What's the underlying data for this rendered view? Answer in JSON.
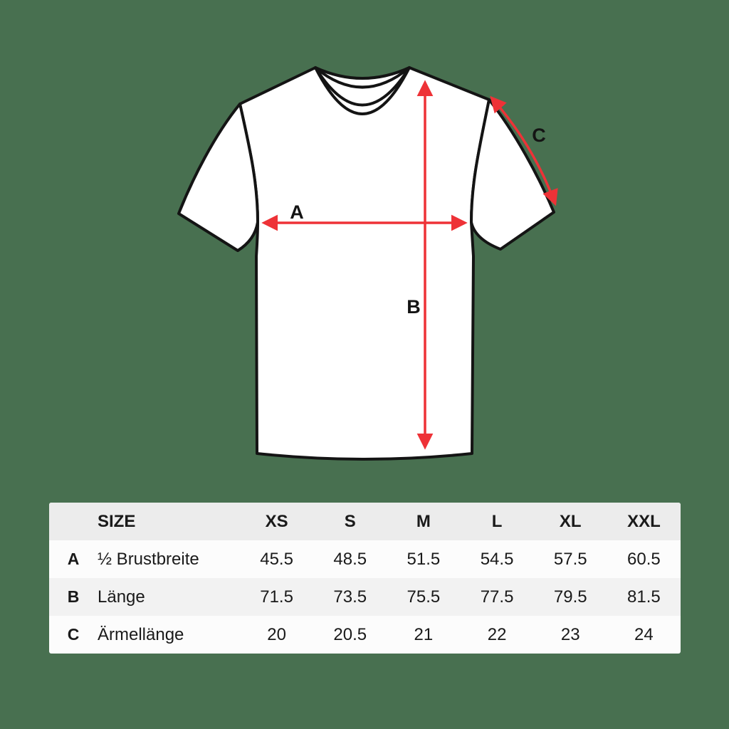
{
  "page": {
    "background_color": "#487050"
  },
  "diagram": {
    "shirt_fill": "#ffffff",
    "outline_color": "#141414",
    "arrow_color": "#EE3237",
    "labels": {
      "chest": "A",
      "length": "B",
      "sleeve": "C"
    }
  },
  "table": {
    "size_label": "SIZE",
    "columns": [
      "XS",
      "S",
      "M",
      "L",
      "XL",
      "XXL"
    ],
    "rows": [
      {
        "letter": "A",
        "name": "½ Brustbreite",
        "values": [
          "45.5",
          "48.5",
          "51.5",
          "54.5",
          "57.5",
          "60.5"
        ]
      },
      {
        "letter": "B",
        "name": "Länge",
        "values": [
          "71.5",
          "73.5",
          "75.5",
          "77.5",
          "79.5",
          "81.5"
        ]
      },
      {
        "letter": "C",
        "name": "Ärmellänge",
        "values": [
          "20",
          "20.5",
          "21",
          "22",
          "23",
          "24"
        ]
      }
    ]
  }
}
